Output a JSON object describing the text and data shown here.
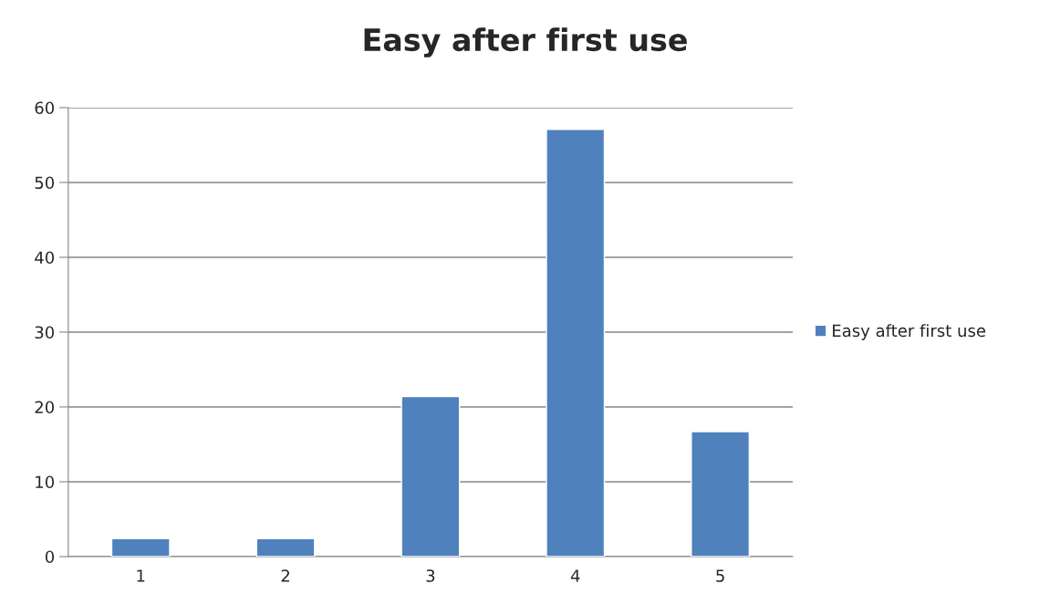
{
  "chart_data": {
    "type": "bar",
    "title": "Easy after first use",
    "categories": [
      "1",
      "2",
      "3",
      "4",
      "5"
    ],
    "series": [
      {
        "name": "Easy after first use",
        "color": "#4f81bd",
        "values": [
          2.4,
          2.4,
          21.4,
          57.1,
          16.7
        ]
      }
    ],
    "ylim": [
      0,
      60
    ],
    "yticks": [
      0,
      10,
      20,
      30,
      40,
      50,
      60
    ],
    "grid": "y",
    "legend": "right"
  }
}
